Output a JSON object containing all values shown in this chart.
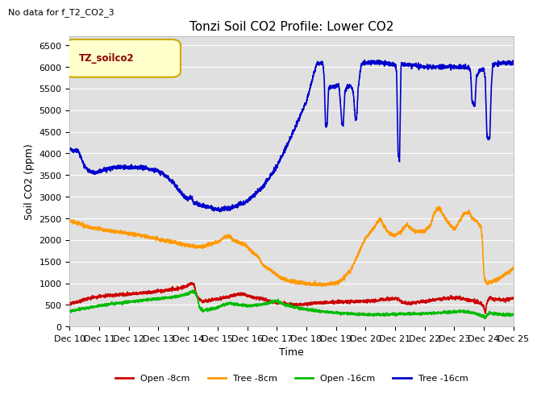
{
  "title": "Tonzi Soil CO2 Profile: Lower CO2",
  "subtitle": "No data for f_T2_CO2_3",
  "ylabel": "Soil CO2 (ppm)",
  "xlabel": "Time",
  "legend_label": "TZ_soilco2",
  "ylim": [
    0,
    6700
  ],
  "yticks": [
    0,
    500,
    1000,
    1500,
    2000,
    2500,
    3000,
    3500,
    4000,
    4500,
    5000,
    5500,
    6000,
    6500
  ],
  "xtick_labels": [
    "Dec 10",
    "Dec 11",
    "Dec 12",
    "Dec 13",
    "Dec 14",
    "Dec 15",
    "Dec 16",
    "Dec 17",
    "Dec 18",
    "Dec 19",
    "Dec 20",
    "Dec 21",
    "Dec 22",
    "Dec 23",
    "Dec 24",
    "Dec 25"
  ],
  "series": {
    "open_8cm": {
      "color": "#cc0000",
      "label": "Open -8cm",
      "linewidth": 1.2
    },
    "tree_8cm": {
      "color": "#ff9900",
      "label": "Tree -8cm",
      "linewidth": 1.2
    },
    "open_16cm": {
      "color": "#00bb00",
      "label": "Open -16cm",
      "linewidth": 1.2
    },
    "tree_16cm": {
      "color": "#0000cc",
      "label": "Tree -16cm",
      "linewidth": 1.2
    }
  },
  "background_color": "#e8e8e8",
  "plot_bg_color": "#e0e0e0",
  "legend_box_facecolor": "#ffffcc",
  "legend_box_edgecolor": "#ccaa00",
  "grid_color": "#ffffff",
  "title_fontsize": 11,
  "axis_fontsize": 9,
  "tick_fontsize": 8
}
